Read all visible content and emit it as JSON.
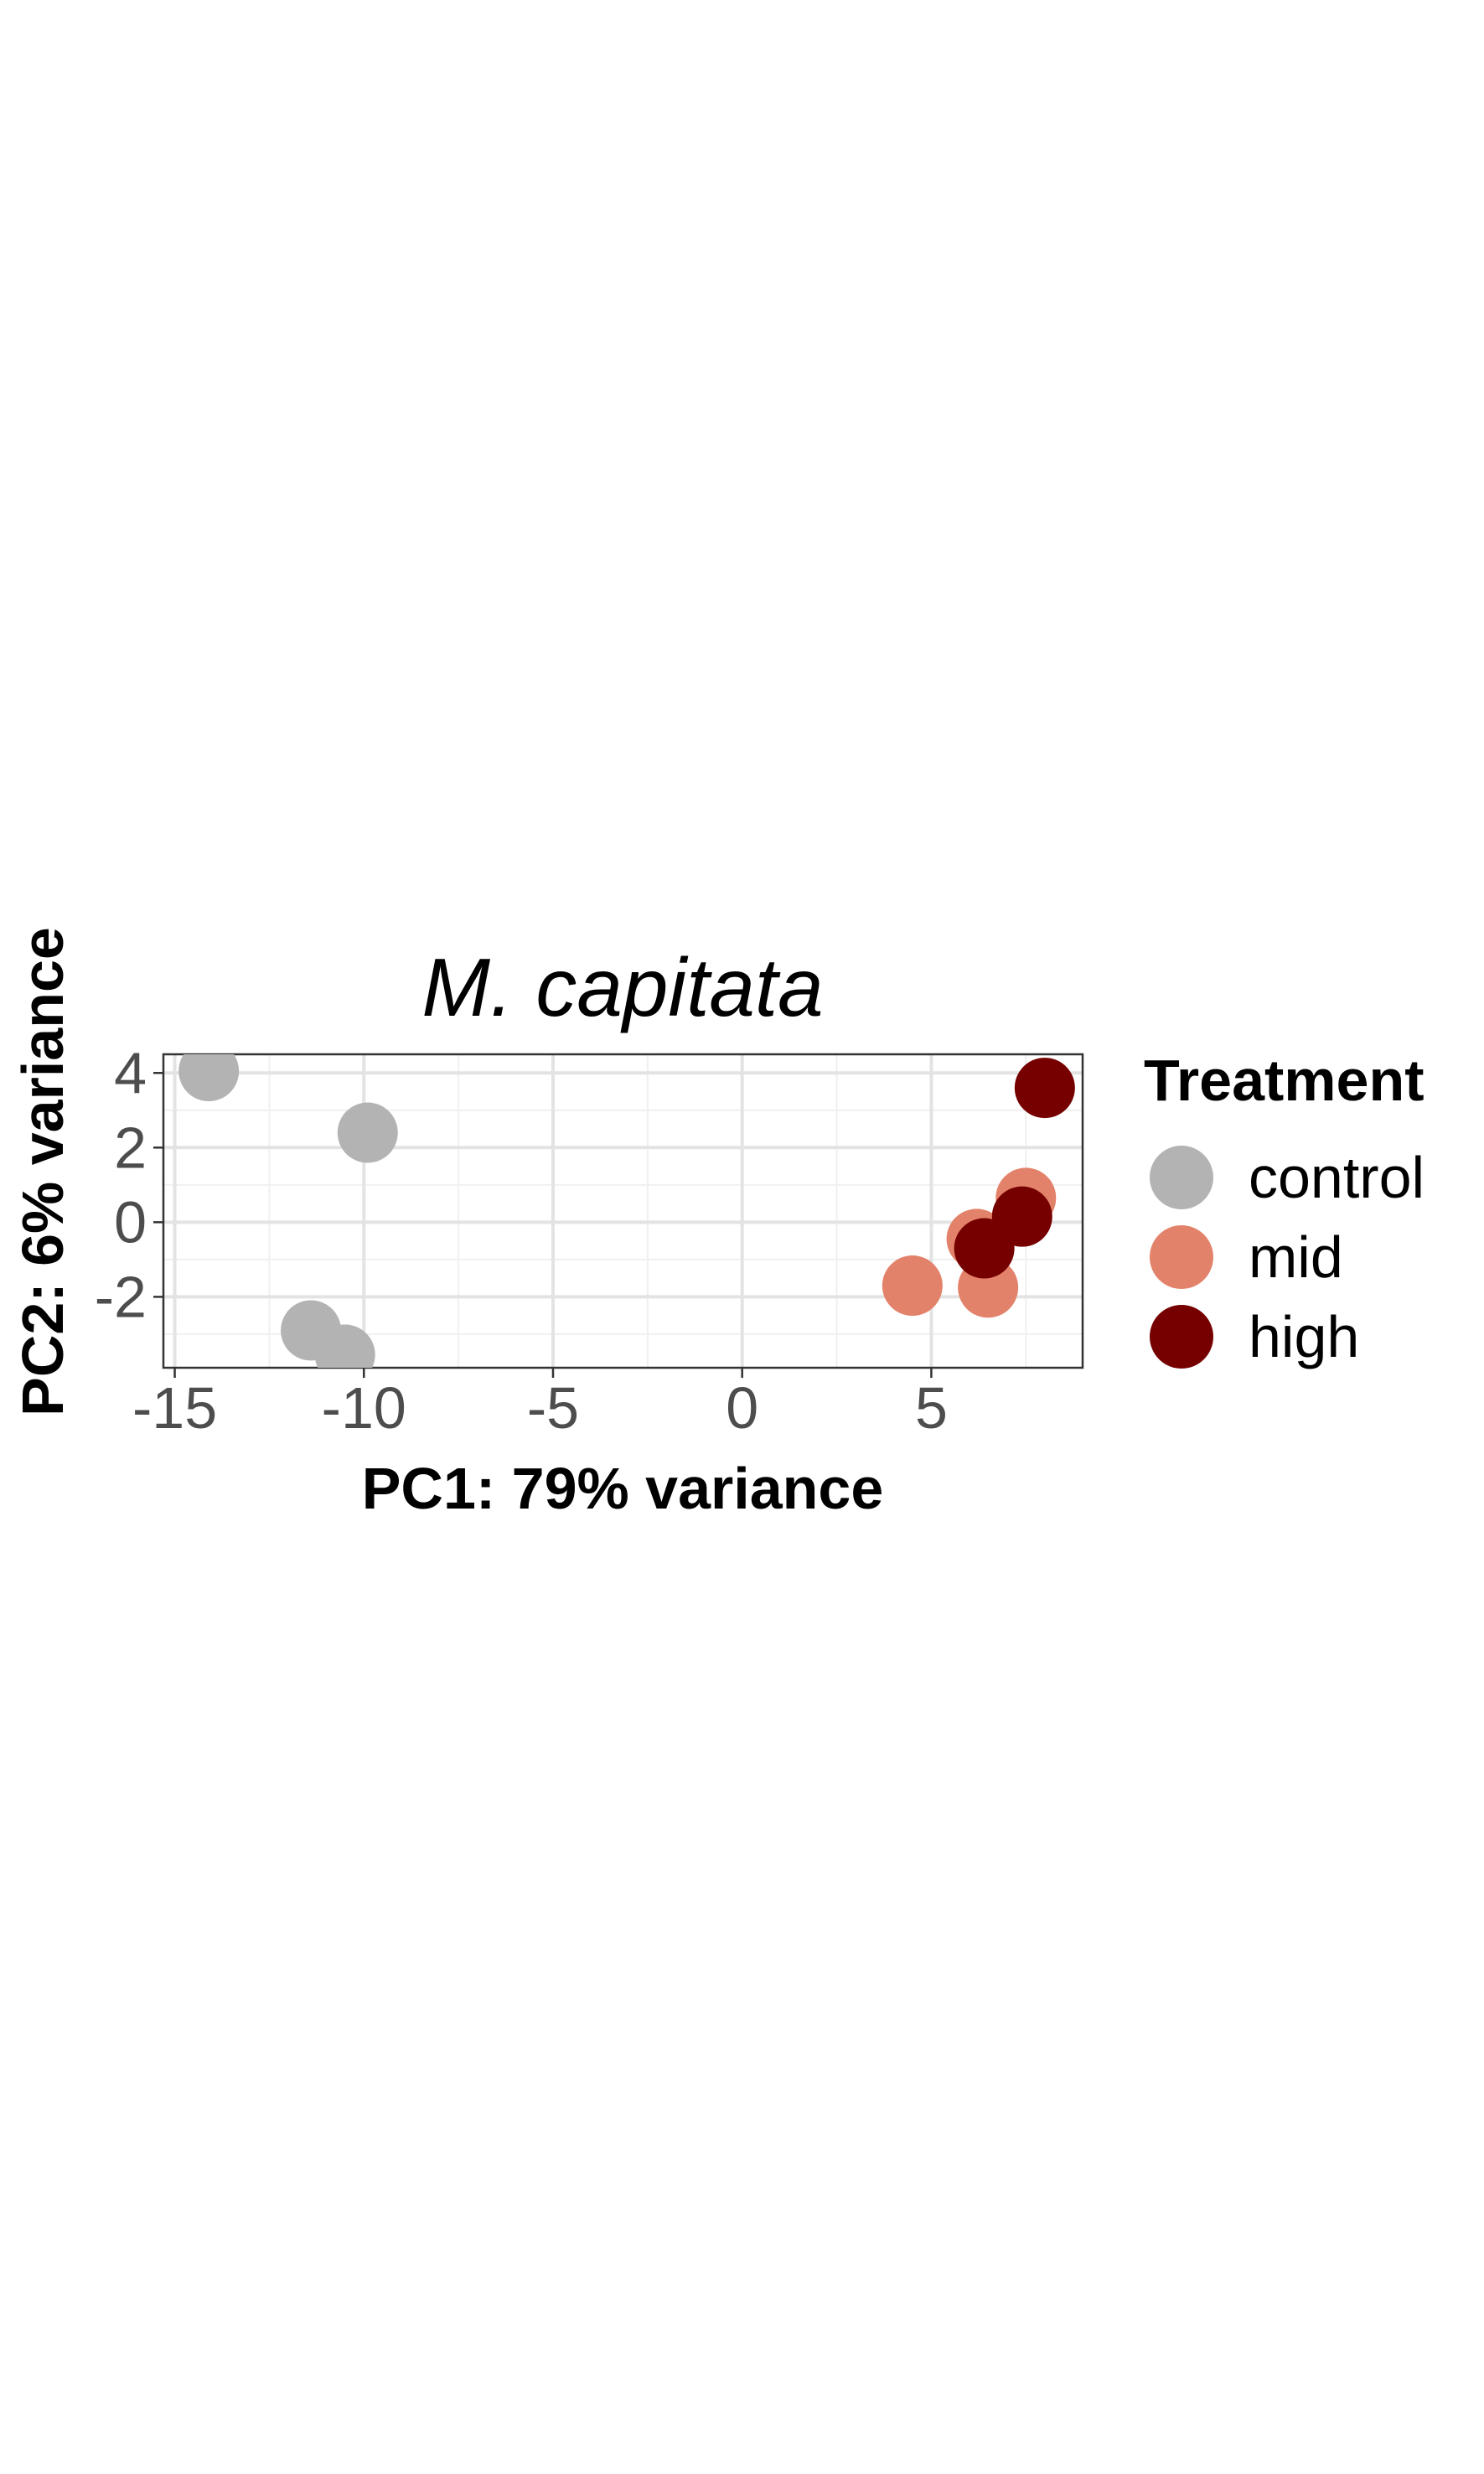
{
  "chart_data": {
    "type": "scatter",
    "title": "M. capitata",
    "xlabel": "PC1: 79% variance",
    "ylabel": "PC2: 6% variance",
    "xlim": [
      -15.3,
      9.0
    ],
    "ylim": [
      -3.9,
      4.5
    ],
    "x_ticks": [
      -15,
      -10,
      -5,
      0,
      5
    ],
    "x_tick_labels": [
      "-15",
      "-10",
      "-5",
      "0",
      "5"
    ],
    "y_ticks": [
      -2,
      0,
      2,
      4
    ],
    "y_tick_labels": [
      "-2",
      "0",
      "2",
      "4"
    ],
    "grid": true,
    "legend": {
      "title": "Treatment",
      "position": "right"
    },
    "series": [
      {
        "name": "control",
        "color": "#b3b3b3",
        "points": [
          {
            "x": -14.1,
            "y": 4.05
          },
          {
            "x": -9.9,
            "y": 2.4
          },
          {
            "x": -11.4,
            "y": -2.9
          },
          {
            "x": -10.5,
            "y": -3.55
          }
        ]
      },
      {
        "name": "mid",
        "color": "#e3826a",
        "points": [
          {
            "x": 4.5,
            "y": -1.7
          },
          {
            "x": 6.2,
            "y": -0.45
          },
          {
            "x": 6.5,
            "y": -1.75
          },
          {
            "x": 7.5,
            "y": 0.65
          }
        ]
      },
      {
        "name": "high",
        "color": "#760000",
        "points": [
          {
            "x": 8.0,
            "y": 3.6
          },
          {
            "x": 6.4,
            "y": -0.7
          },
          {
            "x": 7.4,
            "y": 0.15
          }
        ]
      }
    ]
  }
}
